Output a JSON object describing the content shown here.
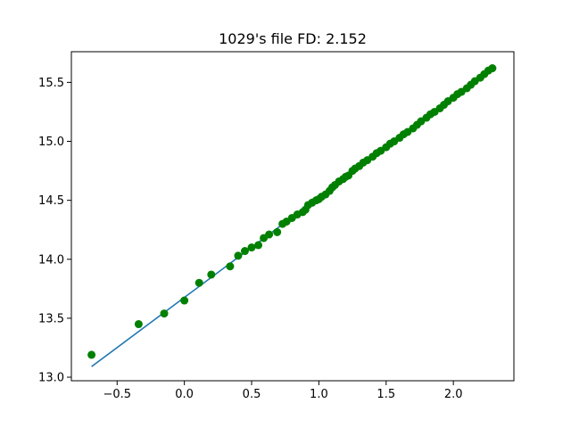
{
  "chart_data": {
    "type": "scatter",
    "title": "1029's file FD: 2.152",
    "xlabel": "",
    "ylabel": "",
    "xlim": [
      -0.84,
      2.45
    ],
    "ylim": [
      12.97,
      15.76
    ],
    "x_ticks": [
      -0.5,
      0.0,
      0.5,
      1.0,
      1.5,
      2.0
    ],
    "x_tick_labels": [
      "−0.5",
      "0.0",
      "0.5",
      "1.0",
      "1.5",
      "2.0"
    ],
    "y_ticks": [
      13.0,
      13.5,
      14.0,
      14.5,
      15.0,
      15.5
    ],
    "y_tick_labels": [
      "13.0",
      "13.5",
      "14.0",
      "14.5",
      "15.0",
      "15.5"
    ],
    "grid": false,
    "colors": {
      "points": "#008000",
      "fit_line": "#1f77b4",
      "axes": "#000000",
      "background": "#ffffff"
    },
    "fit_line": {
      "x": [
        -0.69,
        2.3
      ],
      "y": [
        13.09,
        15.63
      ]
    },
    "points": {
      "x": [
        -0.69,
        -0.34,
        -0.15,
        0.0,
        0.11,
        0.2,
        0.34,
        0.4,
        0.45,
        0.5,
        0.55,
        0.59,
        0.63,
        0.69,
        0.73,
        0.76,
        0.8,
        0.84,
        0.88,
        0.9,
        0.92,
        0.95,
        0.98,
        1.0,
        1.02,
        1.05,
        1.08,
        1.1,
        1.12,
        1.15,
        1.18,
        1.2,
        1.22,
        1.25,
        1.27,
        1.3,
        1.33,
        1.36,
        1.4,
        1.43,
        1.46,
        1.5,
        1.53,
        1.56,
        1.6,
        1.63,
        1.66,
        1.7,
        1.73,
        1.76,
        1.8,
        1.83,
        1.86,
        1.9,
        1.93,
        1.96,
        2.0,
        2.03,
        2.06,
        2.1,
        2.13,
        2.16,
        2.2,
        2.23,
        2.26,
        2.29
      ],
      "y": [
        13.19,
        13.45,
        13.54,
        13.65,
        13.8,
        13.87,
        13.94,
        14.03,
        14.07,
        14.1,
        14.12,
        14.18,
        14.21,
        14.23,
        14.3,
        14.32,
        14.35,
        14.38,
        14.4,
        14.42,
        14.46,
        14.48,
        14.5,
        14.51,
        14.53,
        14.55,
        14.58,
        14.61,
        14.63,
        14.66,
        14.68,
        14.7,
        14.71,
        14.75,
        14.77,
        14.79,
        14.82,
        14.84,
        14.87,
        14.9,
        14.92,
        14.95,
        14.98,
        15.0,
        15.03,
        15.06,
        15.08,
        15.11,
        15.14,
        15.17,
        15.2,
        15.23,
        15.25,
        15.28,
        15.31,
        15.34,
        15.37,
        15.4,
        15.42,
        15.45,
        15.48,
        15.51,
        15.54,
        15.57,
        15.6,
        15.62
      ]
    }
  }
}
